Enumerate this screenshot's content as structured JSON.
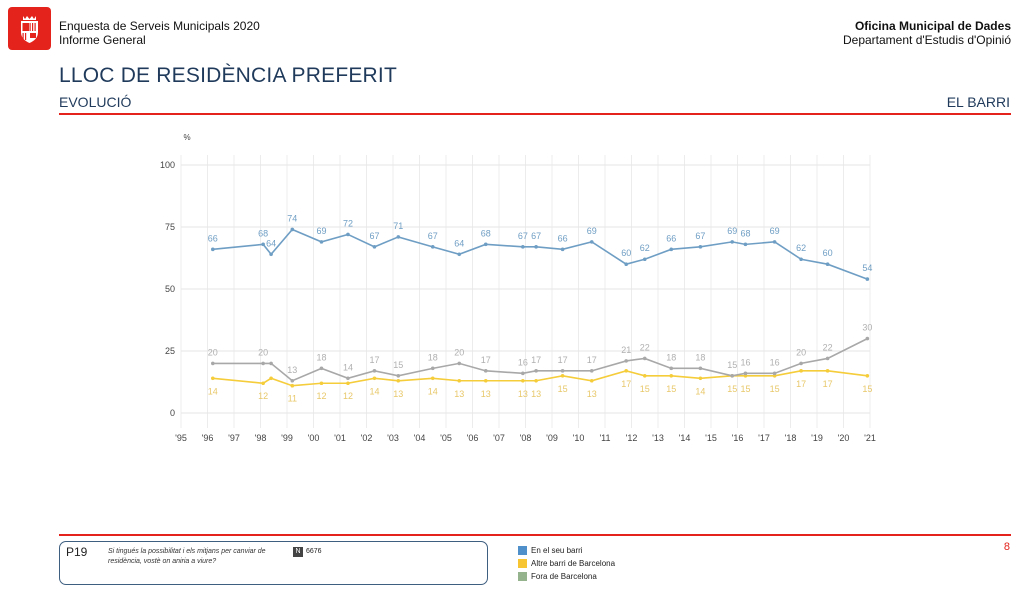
{
  "header": {
    "survey_title": "Enquesta de Serveis Municipals 2020",
    "report_type": "Informe General",
    "office": "Oficina Municipal de Dades",
    "department": "Departament d'Estudis d'Opinió"
  },
  "page": {
    "title": "LLOC DE RESIDÈNCIA PREFERIT",
    "subtitle": "EVOLUCIÓ",
    "scope": "EL BARRI",
    "number": "8"
  },
  "question": {
    "code": "P19",
    "text": "Si tingués la possibilitat i els mitjans per canviar de residència, vostè on aniria a viure?",
    "n_label": "N",
    "n_value": "6676"
  },
  "colors": {
    "accent": "#e3231c",
    "heading": "#1f3a5b"
  },
  "chart_data": {
    "type": "line",
    "title": "LLOC DE RESIDÈNCIA PREFERIT",
    "ylabel": "%",
    "xlabel": "",
    "ylim": [
      0,
      100
    ],
    "yticks": [
      0,
      25,
      50,
      75,
      100
    ],
    "xlim": [
      1995,
      2021
    ],
    "xtick_labels": [
      "'95",
      "'96",
      "'97",
      "'98",
      "'99",
      "'00",
      "'01",
      "'02",
      "'03",
      "'04",
      "'05",
      "'06",
      "'07",
      "'08",
      "'09",
      "'10",
      "'11",
      "'12",
      "'13",
      "'14",
      "'15",
      "'16",
      "'17",
      "'18",
      "'19",
      "'20",
      "'21"
    ],
    "x": [
      1996.2,
      1998.1,
      1998.4,
      1999.2,
      2000.3,
      2001.3,
      2002.3,
      2003.2,
      2004.5,
      2005.5,
      2006.5,
      2007.9,
      2008.4,
      2009.4,
      2010.5,
      2011.8,
      2012.5,
      2013.5,
      2014.6,
      2015.8,
      2016.3,
      2017.4,
      2018.4,
      2019.4,
      2020.9
    ],
    "series": [
      {
        "name": "En el seu barri",
        "color": "#6f9ec4",
        "label_color": "#6f9ec4",
        "values": [
          66,
          68,
          64,
          74,
          69,
          72,
          67,
          71,
          67,
          64,
          68,
          67,
          67,
          66,
          69,
          60,
          62,
          66,
          67,
          69,
          68,
          69,
          62,
          60,
          54
        ],
        "label_pos": "above"
      },
      {
        "name": "Altre barri de Barcelona",
        "color": "#f5cc3a",
        "label_color": "#e8c86a",
        "values": [
          14,
          12,
          14,
          11,
          12,
          12,
          14,
          13,
          14,
          13,
          13,
          13,
          13,
          15,
          13,
          17,
          15,
          15,
          14,
          15,
          15,
          15,
          17,
          17,
          15
        ],
        "label_pos": "below",
        "label_mask": [
          1,
          1,
          0,
          1,
          1,
          1,
          1,
          1,
          1,
          1,
          1,
          1,
          1,
          1,
          1,
          1,
          1,
          1,
          1,
          1,
          1,
          1,
          1,
          1,
          1
        ]
      },
      {
        "name": "Fora de Barcelona",
        "color": "#a8a8a8",
        "label_color": "#b0b0b0",
        "values": [
          20,
          20,
          20,
          13,
          18,
          14,
          17,
          15,
          18,
          20,
          17,
          16,
          17,
          17,
          17,
          21,
          22,
          18,
          18,
          15,
          16,
          16,
          20,
          22,
          30
        ],
        "label_pos": "above",
        "label_mask": [
          1,
          1,
          0,
          1,
          1,
          1,
          1,
          1,
          1,
          1,
          1,
          1,
          1,
          1,
          1,
          1,
          1,
          1,
          1,
          1,
          1,
          1,
          1,
          1,
          1
        ]
      }
    ],
    "legend": [
      {
        "label": "En el seu barri",
        "color": "#4f8fca"
      },
      {
        "label": "Altre barri de Barcelona",
        "color": "#f7c531"
      },
      {
        "label": "Fora de Barcelona",
        "color": "#95b38c"
      }
    ],
    "legend_position": "bottom-center"
  }
}
